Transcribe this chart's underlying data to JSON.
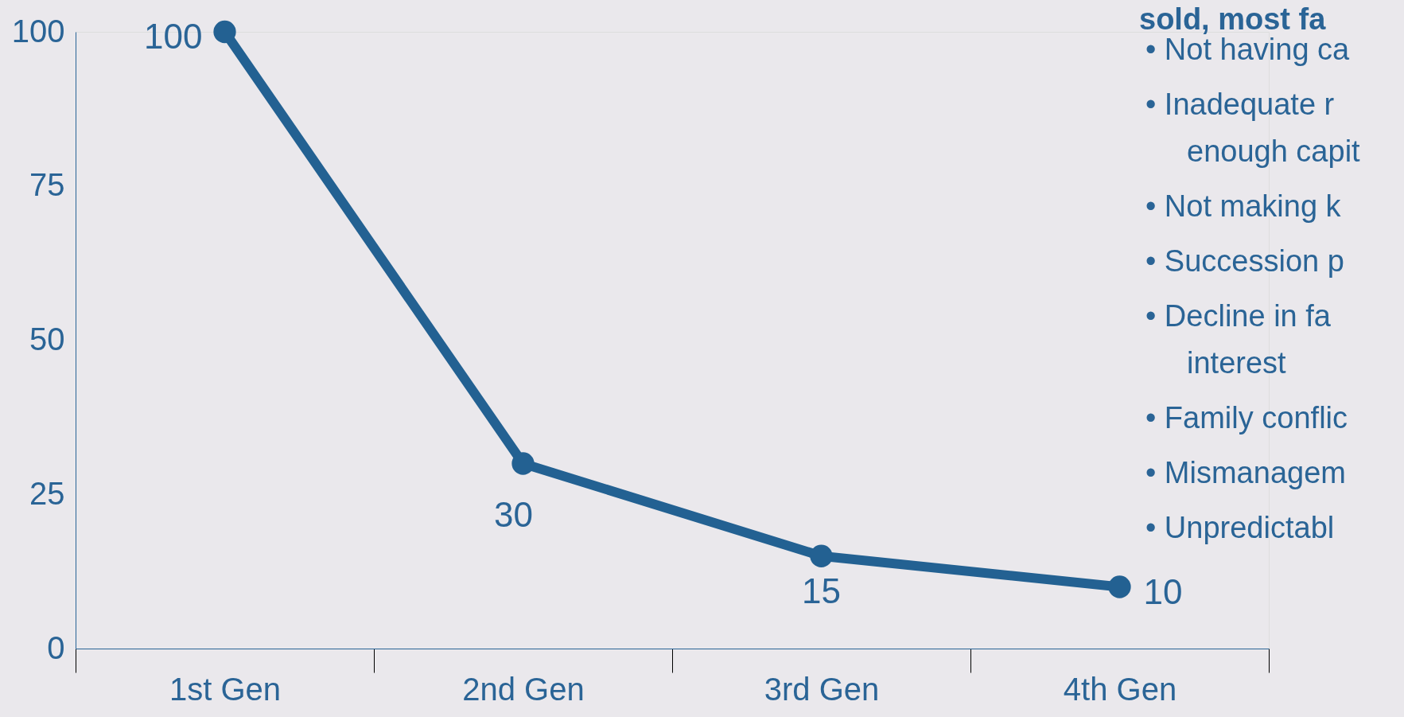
{
  "chart_data": {
    "type": "line",
    "categories": [
      "1st Gen",
      "2nd Gen",
      "3rd Gen",
      "4th Gen"
    ],
    "series": [
      {
        "color": "#236192",
        "values": [
          100,
          30,
          15,
          10
        ]
      }
    ],
    "ylim": [
      0,
      100
    ],
    "yticks": [
      0,
      25,
      50,
      75,
      100
    ],
    "grid": false,
    "marker": "circle",
    "line_style": "solid",
    "data_labels": true,
    "annotations": [
      "sold, most fa",
      "•   Not having ca",
      "•   Inadequate r\nenough capit",
      "•   Not making k",
      "•   Succession p",
      "•   Decline in fa\ninterest",
      "•   Family conflic",
      "•   Mismanagem",
      "•   Unpredictabl"
    ]
  }
}
